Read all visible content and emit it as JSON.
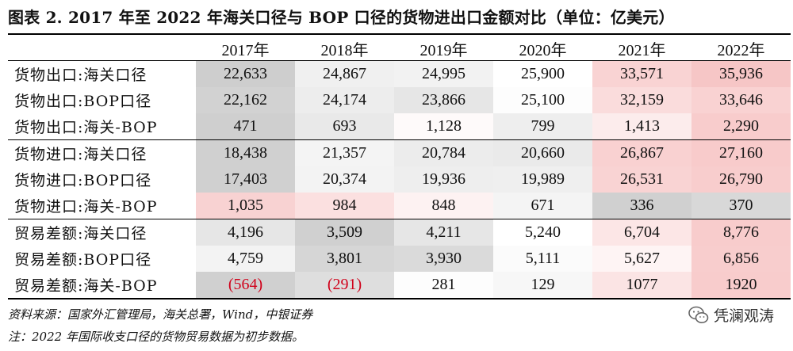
{
  "title": "图表 2. 2017 年至 2022 年海关口径与 BOP 口径的货物进出口金额对比（单位：亿美元）",
  "table": {
    "columns": [
      "",
      "2017年",
      "2018年",
      "2019年",
      "2020年",
      "2021年",
      "2022年"
    ],
    "rows": [
      {
        "label": "货物出口:海关口径",
        "values": [
          "22,633",
          "24,867",
          "24,995",
          "25,900",
          "33,571",
          "35,936"
        ],
        "colors": [
          "#cecece",
          "#f0f0f0",
          "#f2f2f2",
          "#ffffff",
          "#f9d3d3",
          "#f6c6c6"
        ]
      },
      {
        "label": "货物出口:BOP口径",
        "values": [
          "22,162",
          "24,174",
          "23,866",
          "25,100",
          "32,159",
          "33,646"
        ],
        "colors": [
          "#d2d2d2",
          "#ededed",
          "#e6e6e6",
          "#fdfdfd",
          "#fadcdc",
          "#f9d2d2"
        ]
      },
      {
        "label": "货物出口:海关-BOP",
        "values": [
          "471",
          "693",
          "1,128",
          "799",
          "1,413",
          "2,290"
        ],
        "colors": [
          "#cfcfcf",
          "#e9e9e9",
          "#fefafa",
          "#eeeeee",
          "#fcecec",
          "#f8cccc"
        ]
      },
      {
        "label": "货物进口:海关口径",
        "values": [
          "18,438",
          "21,357",
          "20,784",
          "20,660",
          "26,867",
          "27,160"
        ],
        "colors": [
          "#d0d0d0",
          "#f4f4f4",
          "#ececec",
          "#eaeaea",
          "#f9d1d1",
          "#f8cbcb"
        ]
      },
      {
        "label": "货物进口:BOP口径",
        "values": [
          "17,403",
          "20,374",
          "19,936",
          "19,989",
          "26,531",
          "26,790"
        ],
        "colors": [
          "#d0d0d0",
          "#f3f3f3",
          "#eeeeee",
          "#efefef",
          "#f9d3d3",
          "#f8cdcd"
        ]
      },
      {
        "label": "货物进口:海关-BOP",
        "values": [
          "1,035",
          "984",
          "848",
          "671",
          "336",
          "370"
        ],
        "colors": [
          "#f8d2d2",
          "#fbe0e0",
          "#fdf2f2",
          "#f4f4f4",
          "#d0d0d0",
          "#d8d8d8"
        ]
      },
      {
        "label": "贸易差额:海关口径",
        "values": [
          "4,196",
          "3,509",
          "4,211",
          "5,240",
          "6,704",
          "8,776"
        ],
        "colors": [
          "#e6e6e6",
          "#d0d0d0",
          "#e6e6e6",
          "#ffffff",
          "#fce6e6",
          "#f8cccc"
        ]
      },
      {
        "label": "贸易差额:BOP口径",
        "values": [
          "4,759",
          "3,801",
          "3,930",
          "5,111",
          "5,627",
          "6,856"
        ],
        "colors": [
          "#f3f3f3",
          "#d6d6d6",
          "#dadada",
          "#fbfbfb",
          "#fef4f4",
          "#f8cdcd"
        ]
      },
      {
        "label": "贸易差额:海关-BOP",
        "values": [
          "(564)",
          "(291)",
          "281",
          "129",
          "1077",
          "1920"
        ],
        "colors": [
          "#d0d0d0",
          "#dedede",
          "#fdfdfd",
          "#f7f7f7",
          "#fbe4e4",
          "#f8cccc"
        ],
        "negative": [
          true,
          true,
          false,
          false,
          false,
          false
        ]
      }
    ]
  },
  "footnotes": {
    "source": "资料来源：国家外汇管理局，海关总署，Wind，中银证券",
    "note": "注：2022 年国际收支口径的货物贸易数据为初步数据。"
  },
  "watermark": {
    "text": "凭澜观涛",
    "icon": "wechat-icon"
  }
}
